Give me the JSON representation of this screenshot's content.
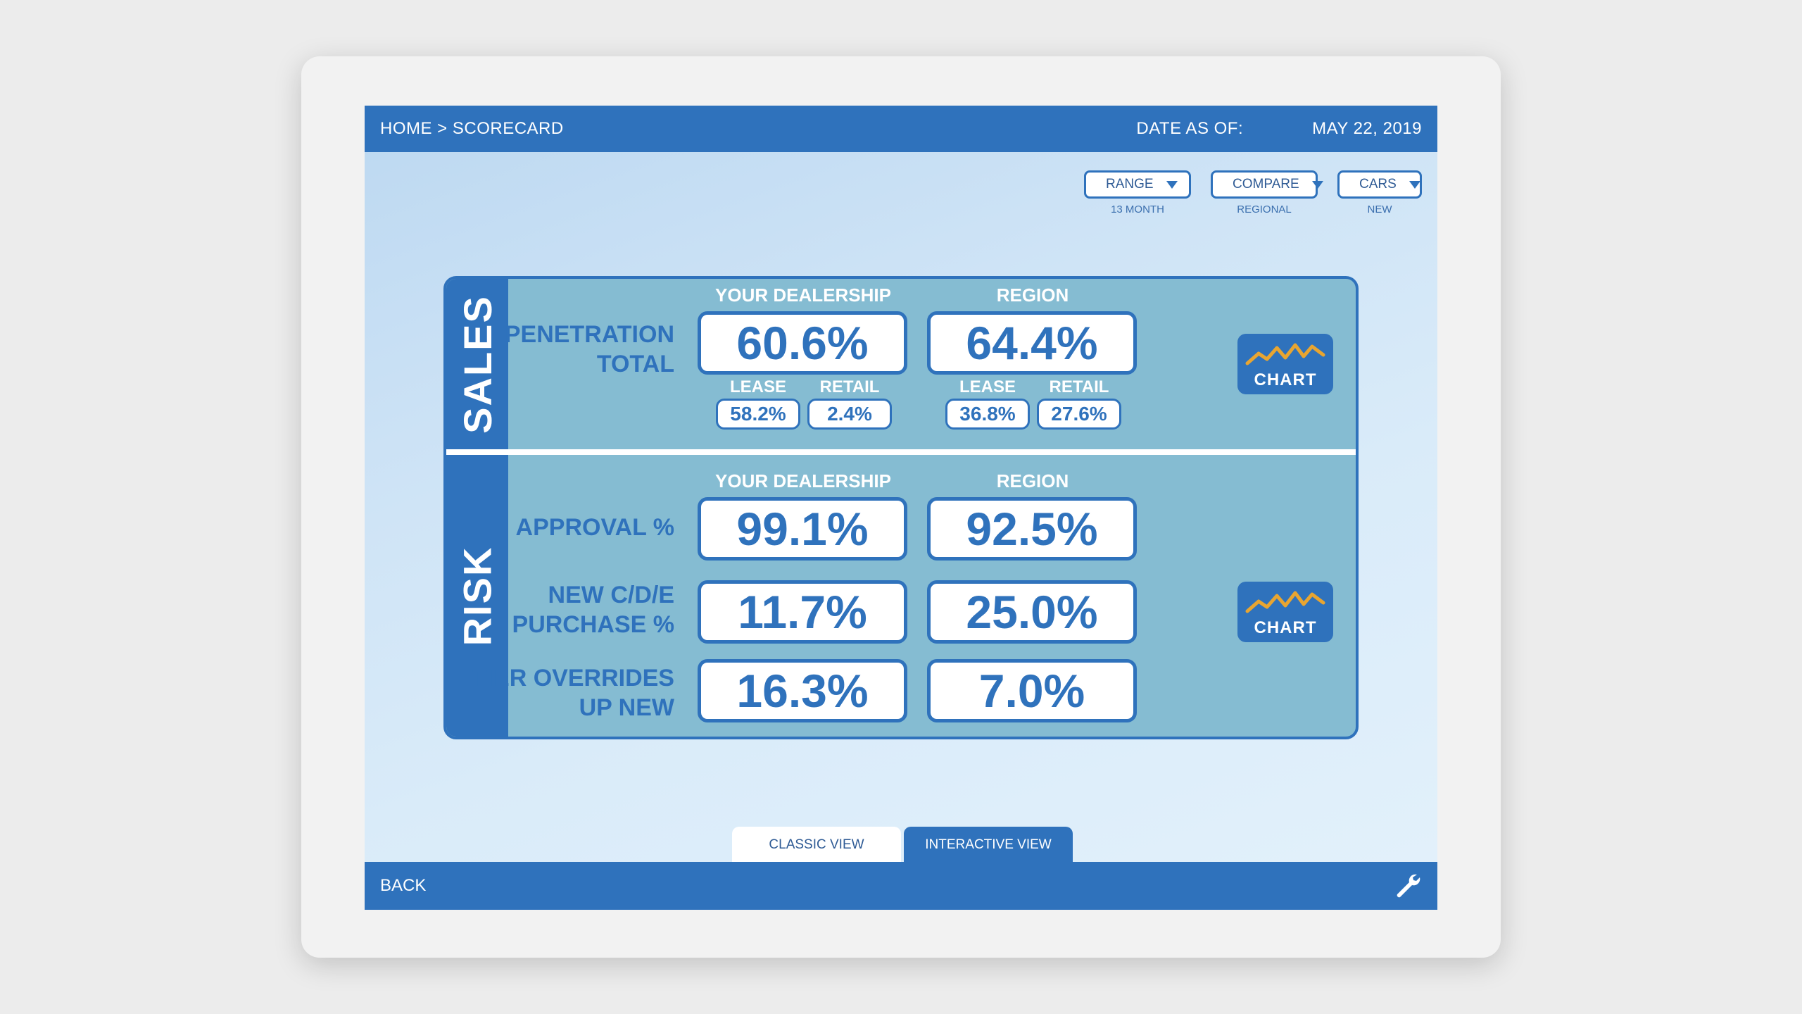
{
  "header": {
    "breadcrumb": "HOME > SCORECARD",
    "date_label": "DATE AS OF:",
    "date_value": "MAY 22, 2019"
  },
  "filters": {
    "range": {
      "label": "RANGE",
      "value": "13 MONTH"
    },
    "compare": {
      "label": "COMPARE",
      "value": "REGIONAL"
    },
    "cars": {
      "label": "CARS",
      "value": "NEW"
    }
  },
  "columns": {
    "dealership": "YOUR DEALERSHIP",
    "region": "REGION"
  },
  "sales": {
    "title": "SALES",
    "penetration": {
      "label_line1": "PENETRATION",
      "label_line2": "TOTAL",
      "dealership": "60.6%",
      "region": "64.4%",
      "lease_label": "LEASE",
      "retail_label": "RETAIL",
      "dealership_lease": "58.2%",
      "dealership_retail": "2.4%",
      "region_lease": "36.8%",
      "region_retail": "27.6%"
    },
    "chart_label": "CHART"
  },
  "risk": {
    "title": "RISK",
    "approval": {
      "label": "APPROVAL %",
      "dealership": "99.1%",
      "region": "92.5%"
    },
    "new_cde": {
      "label_line1": "NEW C/D/E",
      "label_line2": "PURCHASE %",
      "dealership": "11.7%",
      "region": "25.0%"
    },
    "tier": {
      "label_line1": "TIER OVERRIDES",
      "label_line2": "UP NEW",
      "dealership": "16.3%",
      "region": "7.0%"
    },
    "chart_label": "CHART"
  },
  "tabs": {
    "classic": "CLASSIC VIEW",
    "interactive": "INTERACTIVE VIEW"
  },
  "footer": {
    "back": "BACK"
  },
  "colors": {
    "primary": "#2f72bc",
    "panel": "#85bcd2",
    "sparkline": "#e8a531"
  }
}
